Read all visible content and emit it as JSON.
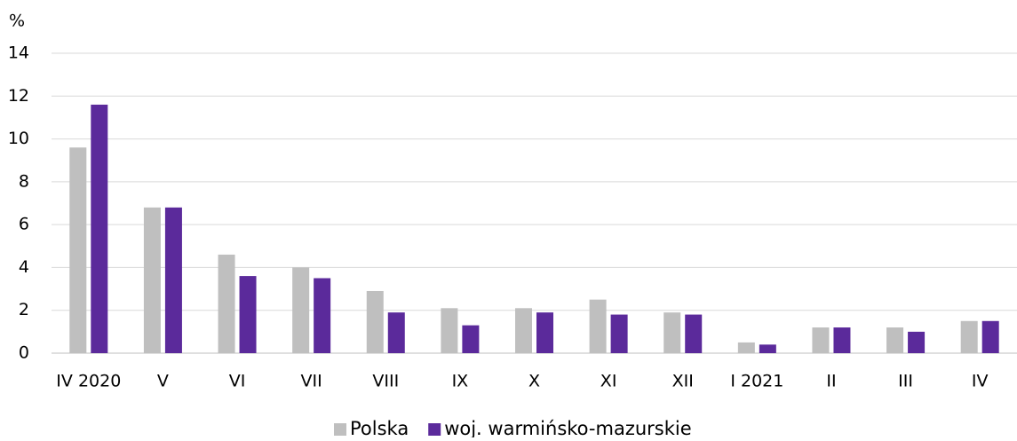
{
  "chart_data": {
    "type": "bar",
    "y_axis_label": "%",
    "categories": [
      "IV 2020",
      "V",
      "VI",
      "VII",
      "VIII",
      "IX",
      "X",
      "XI",
      "XII",
      "I 2021",
      "II",
      "III",
      "IV"
    ],
    "series": [
      {
        "name": "Polska",
        "color": "#bfbfbf",
        "values": [
          9.6,
          6.8,
          4.6,
          4.0,
          2.9,
          2.1,
          2.1,
          2.5,
          1.9,
          0.5,
          1.2,
          1.2,
          1.5
        ]
      },
      {
        "name": "woj. warmińsko-mazurskie",
        "color": "#5b2a9b",
        "values": [
          11.6,
          6.8,
          3.6,
          3.5,
          1.9,
          1.3,
          1.9,
          1.8,
          1.8,
          0.4,
          1.2,
          1.0,
          1.5
        ]
      }
    ],
    "ylim": [
      0,
      14
    ],
    "yticks": [
      0,
      2,
      4,
      6,
      8,
      10,
      12,
      14
    ],
    "grid": true,
    "legend": "bottom"
  }
}
